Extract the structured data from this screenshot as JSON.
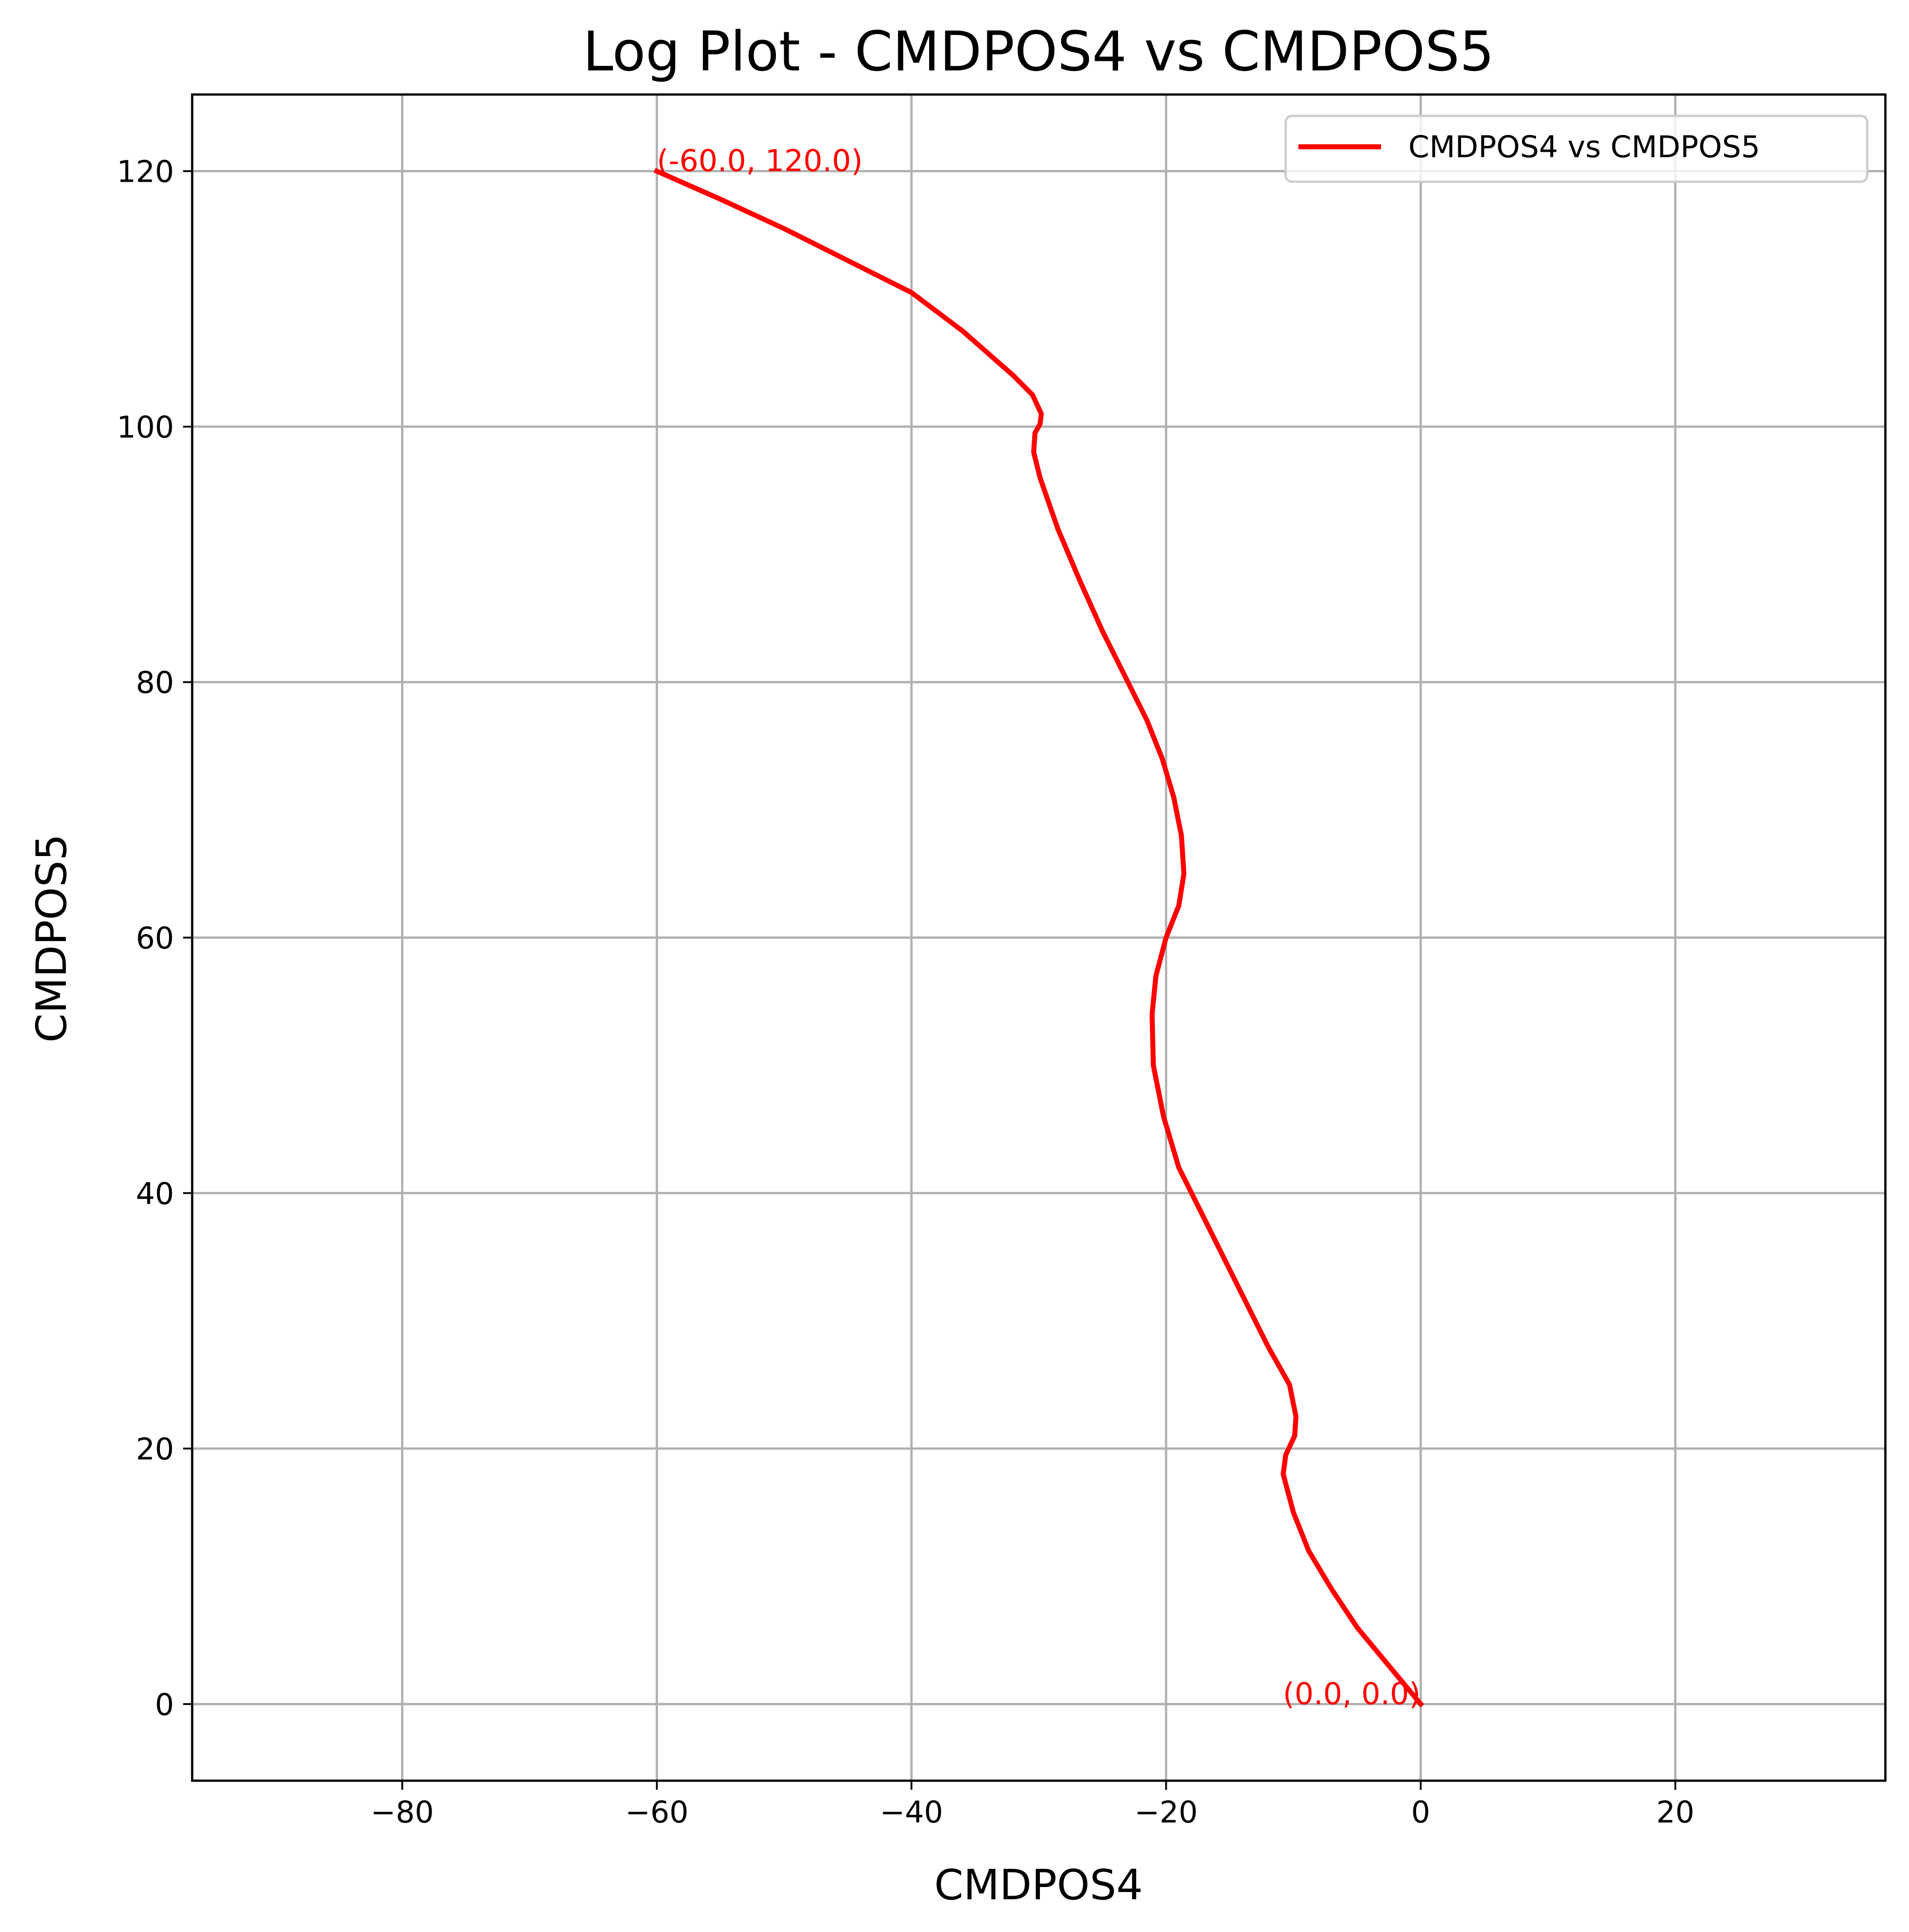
{
  "chart_data": {
    "type": "line",
    "title": "Log Plot - CMDPOS4 vs CMDPOS5",
    "xlabel": "CMDPOS4",
    "ylabel": "CMDPOS5",
    "xlim": [
      -96.5,
      36.5
    ],
    "ylim": [
      -6,
      126
    ],
    "xticks": [
      -80,
      -60,
      -40,
      -20,
      0,
      20
    ],
    "xtick_labels": [
      "−80",
      "−60",
      "−40",
      "−20",
      "0",
      "20"
    ],
    "yticks": [
      0,
      20,
      40,
      60,
      80,
      100,
      120
    ],
    "ytick_labels": [
      "0",
      "20",
      "40",
      "60",
      "80",
      "100",
      "120"
    ],
    "grid": true,
    "legend_position": "top-right",
    "series": [
      {
        "name": "CMDPOS4 vs CMDPOS5",
        "color": "#ff0000",
        "x": [
          0.0,
          -2.5,
          -5.0,
          -7.0,
          -8.8,
          -10.0,
          -10.8,
          -10.6,
          -9.9,
          -9.8,
          -10.3,
          -12.0,
          -14.5,
          -17.0,
          -19.0,
          -20.2,
          -21.0,
          -21.1,
          -20.8,
          -20.0,
          -19.0,
          -18.6,
          -18.8,
          -19.4,
          -20.3,
          -21.5,
          -23.0,
          -25.0,
          -26.8,
          -28.5,
          -29.9,
          -30.4,
          -30.3,
          -29.9,
          -29.8,
          -30.5,
          -32.0,
          -36.0,
          -40.0,
          -45.0,
          -50.0,
          -55.0,
          -60.0
        ],
        "y": [
          0.0,
          3.0,
          6.0,
          9.0,
          12.0,
          15.0,
          18.0,
          19.5,
          21.0,
          22.5,
          25.0,
          28.0,
          33.0,
          38.0,
          42.0,
          46.0,
          50.0,
          54.0,
          57.0,
          60.0,
          62.5,
          65.0,
          68.0,
          71.0,
          74.0,
          77.0,
          80.0,
          84.0,
          88.0,
          92.0,
          96.0,
          98.0,
          99.5,
          100.2,
          101.0,
          102.5,
          104.0,
          107.5,
          110.5,
          113.0,
          115.5,
          117.8,
          120.0
        ]
      }
    ],
    "annotations": [
      {
        "text": "(-60.0, 120.0)",
        "x": -60.0,
        "y": 120.0,
        "anchor": "start",
        "color": "#ff0000"
      },
      {
        "text": "(0.0, 0.0)",
        "x": 0.0,
        "y": 0.0,
        "anchor": "end",
        "color": "#ff0000"
      }
    ]
  }
}
